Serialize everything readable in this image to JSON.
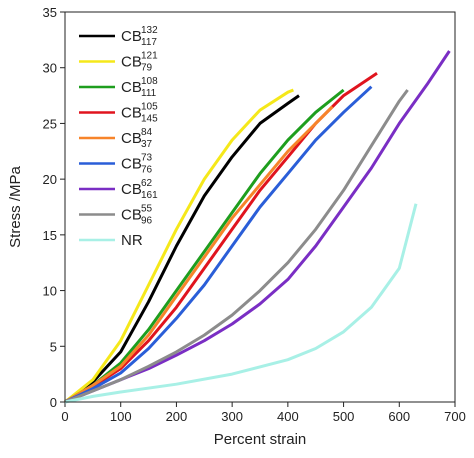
{
  "chart_data": {
    "type": "line",
    "x_label": "Percent strain",
    "y_label": "Stress /MPa",
    "xlim": [
      0,
      700
    ],
    "xticks": [
      0,
      100,
      200,
      300,
      400,
      500,
      600,
      700
    ],
    "ylim": [
      0,
      35
    ],
    "yticks": [
      0,
      5,
      10,
      15,
      20,
      25,
      30,
      35
    ],
    "legend": "upper left",
    "series": [
      {
        "name": "CB",
        "superscript": "132",
        "subscript": "117",
        "color": "#000000",
        "x": [
          0,
          50,
          100,
          150,
          200,
          250,
          300,
          350,
          400,
          420
        ],
        "values": [
          0,
          1.8,
          4.5,
          9,
          14,
          18.5,
          22,
          25,
          26.8,
          27.5
        ]
      },
      {
        "name": "CB",
        "superscript": "121",
        "subscript": "79",
        "color": "#f5e81a",
        "x": [
          0,
          50,
          100,
          150,
          200,
          250,
          300,
          350,
          400,
          410
        ],
        "values": [
          0,
          2,
          5.5,
          10.5,
          15.5,
          20,
          23.5,
          26.2,
          27.8,
          28
        ]
      },
      {
        "name": "CB",
        "superscript": "108",
        "subscript": "111",
        "color": "#1e9e1e",
        "x": [
          0,
          50,
          100,
          150,
          200,
          250,
          300,
          350,
          400,
          450,
          500
        ],
        "values": [
          0,
          1.5,
          3.5,
          6.5,
          10,
          13.5,
          17,
          20.5,
          23.5,
          26,
          28
        ]
      },
      {
        "name": "CB",
        "superscript": "105",
        "subscript": "145",
        "color": "#e0141e",
        "x": [
          0,
          50,
          100,
          150,
          200,
          250,
          300,
          350,
          400,
          450,
          500,
          560
        ],
        "values": [
          0,
          1.4,
          3,
          5.5,
          8.5,
          12,
          15.5,
          19,
          22,
          25,
          27.5,
          29.5
        ]
      },
      {
        "name": "CB",
        "superscript": "84",
        "subscript": "37",
        "color": "#f7842a",
        "x": [
          0,
          50,
          100,
          150,
          200,
          250,
          300,
          350,
          400,
          450,
          480
        ],
        "values": [
          0,
          1.5,
          3.2,
          6,
          9.5,
          13,
          16.5,
          19.5,
          22.5,
          25,
          26.5
        ]
      },
      {
        "name": "CB",
        "superscript": "73",
        "subscript": "76",
        "color": "#2a5ed8",
        "x": [
          0,
          50,
          100,
          150,
          200,
          250,
          300,
          350,
          400,
          450,
          500,
          550
        ],
        "values": [
          0,
          1.2,
          2.6,
          4.8,
          7.5,
          10.5,
          14,
          17.5,
          20.5,
          23.5,
          26,
          28.3
        ]
      },
      {
        "name": "CB",
        "superscript": "62",
        "subscript": "161",
        "color": "#7a2ec4",
        "x": [
          0,
          50,
          100,
          150,
          200,
          250,
          300,
          350,
          400,
          450,
          500,
          550,
          600,
          650,
          690
        ],
        "values": [
          0,
          1,
          2,
          3,
          4.2,
          5.5,
          7,
          8.8,
          11,
          14,
          17.5,
          21,
          25,
          28.5,
          31.5
        ]
      },
      {
        "name": "CB",
        "superscript": "55",
        "subscript": "96",
        "color": "#8c8c8c",
        "x": [
          0,
          50,
          100,
          150,
          200,
          250,
          300,
          350,
          400,
          450,
          500,
          550,
          600,
          615
        ],
        "values": [
          0,
          1,
          2,
          3.2,
          4.5,
          6,
          7.8,
          10,
          12.5,
          15.5,
          19,
          23,
          27,
          28
        ]
      },
      {
        "name": "NR",
        "color": "#a8f0e6",
        "x": [
          0,
          50,
          100,
          200,
          300,
          400,
          450,
          500,
          550,
          600,
          630
        ],
        "values": [
          0,
          0.5,
          0.9,
          1.6,
          2.5,
          3.8,
          4.8,
          6.3,
          8.5,
          12,
          17.8
        ]
      }
    ]
  }
}
